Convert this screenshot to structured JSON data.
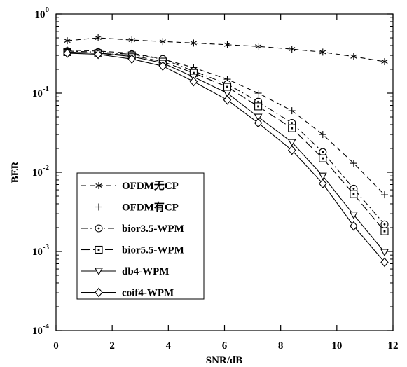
{
  "chart_data": {
    "type": "line",
    "title": "",
    "xlabel": "SNR/dB",
    "ylabel": "BER",
    "xlim": [
      0,
      12
    ],
    "ylim": [
      0.0001,
      1
    ],
    "yscale": "log",
    "grid": false,
    "legend_position": "bottom-left",
    "x_ticks": [
      "0",
      "2",
      "4",
      "6",
      "8",
      "10",
      "12"
    ],
    "y_ticks": [
      {
        "base": "10",
        "exp": "0",
        "value": 1
      },
      {
        "base": "10",
        "exp": "-1",
        "value": 0.1
      },
      {
        "base": "10",
        "exp": "-2",
        "value": 0.01
      },
      {
        "base": "10",
        "exp": "-3",
        "value": 0.001
      },
      {
        "base": "10",
        "exp": "-4",
        "value": 0.0001
      }
    ],
    "x": [
      0.4,
      1.5,
      2.7,
      3.8,
      4.9,
      6.1,
      7.2,
      8.4,
      9.5,
      10.6,
      11.7
    ],
    "series": [
      {
        "name": "OFDM无CP",
        "marker": "asterisk",
        "dash": "dashed",
        "color": "#000000",
        "values": [
          0.46,
          0.5,
          0.47,
          0.45,
          0.43,
          0.41,
          0.39,
          0.36,
          0.33,
          0.29,
          0.25
        ]
      },
      {
        "name": "OFDM有CP",
        "marker": "plus",
        "dash": "dashed",
        "color": "#000000",
        "values": [
          0.35,
          0.34,
          0.32,
          0.27,
          0.21,
          0.15,
          0.1,
          0.06,
          0.03,
          0.013,
          0.0052
        ]
      },
      {
        "name": "bior3.5-WPM",
        "marker": "circle-dot",
        "dash": "dashdot",
        "color": "#000000",
        "values": [
          0.34,
          0.33,
          0.31,
          0.27,
          0.19,
          0.13,
          0.078,
          0.042,
          0.018,
          0.0062,
          0.0022
        ]
      },
      {
        "name": "bior5.5-WPM",
        "marker": "square-dot",
        "dash": "longdash",
        "color": "#000000",
        "values": [
          0.33,
          0.32,
          0.3,
          0.25,
          0.18,
          0.12,
          0.068,
          0.036,
          0.015,
          0.0053,
          0.0018
        ]
      },
      {
        "name": "db4-WPM",
        "marker": "triangle-down",
        "dash": "solid",
        "color": "#000000",
        "values": [
          0.33,
          0.32,
          0.29,
          0.24,
          0.16,
          0.1,
          0.05,
          0.024,
          0.009,
          0.0029,
          0.00098
        ]
      },
      {
        "name": "coif4-WPM",
        "marker": "diamond",
        "dash": "solid",
        "color": "#000000",
        "values": [
          0.32,
          0.31,
          0.27,
          0.22,
          0.14,
          0.082,
          0.042,
          0.019,
          0.0072,
          0.0021,
          0.00073
        ]
      }
    ]
  }
}
